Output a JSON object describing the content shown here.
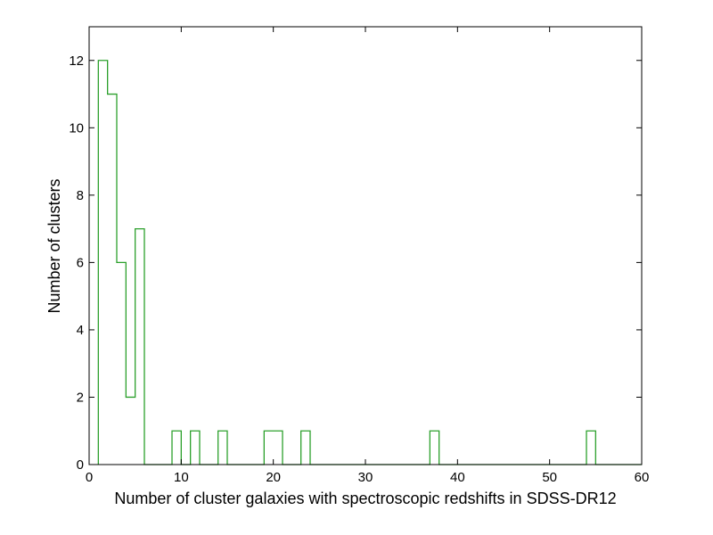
{
  "chart_data": {
    "type": "histogram",
    "title": "",
    "xlabel": "Number of cluster galaxies with spectroscopic redshifts in SDSS-DR12",
    "ylabel": "Number of clusters",
    "xlim": [
      0,
      60
    ],
    "ylim": [
      0,
      13
    ],
    "xticks": [
      0,
      10,
      20,
      30,
      40,
      50,
      60
    ],
    "yticks": [
      0,
      2,
      4,
      6,
      8,
      10,
      12
    ],
    "grid": false,
    "histtype": "step",
    "color": "#2ca02c",
    "bins": [
      {
        "x0": 1,
        "x1": 2,
        "count": 12
      },
      {
        "x0": 2,
        "x1": 3,
        "count": 11
      },
      {
        "x0": 3,
        "x1": 4,
        "count": 6
      },
      {
        "x0": 4,
        "x1": 5,
        "count": 2
      },
      {
        "x0": 5,
        "x1": 6,
        "count": 7
      },
      {
        "x0": 6,
        "x1": 9,
        "count": 0
      },
      {
        "x0": 9,
        "x1": 10,
        "count": 1
      },
      {
        "x0": 10,
        "x1": 11,
        "count": 0
      },
      {
        "x0": 11,
        "x1": 12,
        "count": 1
      },
      {
        "x0": 12,
        "x1": 14,
        "count": 0
      },
      {
        "x0": 14,
        "x1": 15,
        "count": 1
      },
      {
        "x0": 15,
        "x1": 19,
        "count": 0
      },
      {
        "x0": 19,
        "x1": 21,
        "count": 1
      },
      {
        "x0": 21,
        "x1": 23,
        "count": 0
      },
      {
        "x0": 23,
        "x1": 24,
        "count": 1
      },
      {
        "x0": 24,
        "x1": 37,
        "count": 0
      },
      {
        "x0": 37,
        "x1": 38,
        "count": 1
      },
      {
        "x0": 38,
        "x1": 54,
        "count": 0
      },
      {
        "x0": 54,
        "x1": 55,
        "count": 1
      },
      {
        "x0": 55,
        "x1": 60,
        "count": 0
      }
    ]
  }
}
